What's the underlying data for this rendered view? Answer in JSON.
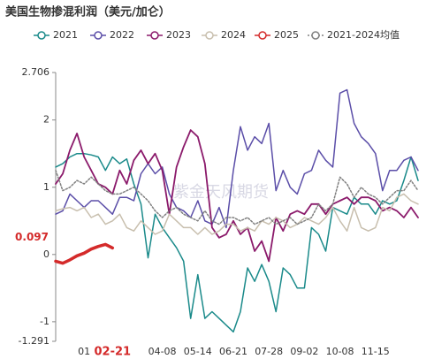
{
  "chart_data": {
    "type": "line",
    "title": "美国生物掺混利润（美元/加仑）",
    "watermark": "紫金天风期货",
    "categories": [
      null,
      null,
      null,
      null,
      "01",
      null,
      null,
      null,
      "02-21",
      null,
      null,
      null,
      null,
      null,
      null,
      "04-08",
      null,
      null,
      null,
      null,
      "05-14",
      null,
      null,
      null,
      null,
      "06-21",
      null,
      null,
      null,
      null,
      "07-28",
      null,
      null,
      null,
      null,
      "09-02",
      null,
      null,
      null,
      null,
      "10-08",
      null,
      null,
      null,
      null,
      "11-15",
      null,
      null,
      null,
      null,
      null,
      null
    ],
    "x_highlight": {
      "index": 8,
      "color": "#d42a2a"
    },
    "ylim": [
      -1.291,
      2.706
    ],
    "yticks": [
      -1.291,
      -1,
      0,
      1,
      2,
      2.706
    ],
    "series": [
      {
        "name": "2021",
        "color": "#1a8a8a",
        "width": 1.5,
        "dash": false,
        "values": [
          1.3,
          1.35,
          1.45,
          1.5,
          1.5,
          1.48,
          1.45,
          1.25,
          1.45,
          1.35,
          1.42,
          1.05,
          0.75,
          -0.05,
          0.6,
          0.4,
          0.25,
          0.1,
          -0.1,
          -0.95,
          -0.3,
          -0.95,
          -0.85,
          -0.95,
          -1.05,
          -1.15,
          -0.85,
          -0.2,
          -0.4,
          -0.15,
          -0.4,
          -0.85,
          -0.2,
          -0.3,
          -0.5,
          -0.5,
          0.4,
          0.3,
          0.05,
          0.7,
          0.65,
          0.6,
          0.85,
          0.75,
          0.75,
          0.6,
          0.8,
          0.75,
          0.8,
          1.1,
          1.45,
          1.1
        ]
      },
      {
        "name": "2022",
        "color": "#5b4ea8",
        "width": 1.5,
        "dash": false,
        "values": [
          0.6,
          0.65,
          0.9,
          0.8,
          0.7,
          0.8,
          0.8,
          0.7,
          0.6,
          0.85,
          0.85,
          0.8,
          1.2,
          1.35,
          1.2,
          1.3,
          0.9,
          0.7,
          0.65,
          0.55,
          0.8,
          0.5,
          0.45,
          0.7,
          0.4,
          1.25,
          1.9,
          1.55,
          1.75,
          1.65,
          1.95,
          0.95,
          1.25,
          1.0,
          0.9,
          1.2,
          1.25,
          1.55,
          1.4,
          1.3,
          2.4,
          2.45,
          1.95,
          1.75,
          1.65,
          1.5,
          0.95,
          1.25,
          1.25,
          1.4,
          1.45,
          1.25
        ]
      },
      {
        "name": "2023",
        "color": "#8b1a6b",
        "width": 1.8,
        "dash": false,
        "values": [
          1.05,
          1.2,
          1.55,
          1.8,
          1.45,
          1.25,
          1.05,
          1.0,
          0.9,
          1.25,
          1.05,
          1.4,
          1.55,
          1.35,
          1.5,
          1.25,
          0.6,
          1.3,
          1.6,
          1.85,
          1.75,
          1.35,
          0.4,
          0.25,
          0.3,
          0.5,
          0.3,
          0.4,
          0.05,
          0.2,
          -0.1,
          0.55,
          0.35,
          0.6,
          0.65,
          0.6,
          0.75,
          0.75,
          0.6,
          0.75,
          0.8,
          0.85,
          0.75,
          0.85,
          0.85,
          0.8,
          0.65,
          0.7,
          0.65,
          0.55,
          0.7,
          0.55
        ]
      },
      {
        "name": "2024",
        "color": "#c8bfae",
        "width": 1.5,
        "dash": false,
        "values": [
          0.65,
          0.68,
          0.7,
          0.65,
          0.7,
          0.55,
          0.6,
          0.45,
          0.5,
          0.6,
          0.4,
          0.35,
          0.5,
          0.4,
          0.3,
          0.35,
          0.6,
          0.5,
          0.4,
          0.4,
          0.3,
          0.4,
          0.3,
          0.35,
          0.45,
          0.45,
          0.35,
          0.4,
          0.35,
          0.5,
          0.45,
          0.55,
          0.5,
          0.4,
          0.45,
          0.55,
          0.5,
          0.45,
          0.55,
          0.7,
          0.5,
          0.35,
          0.7,
          0.4,
          0.35,
          0.4,
          0.7,
          0.65,
          0.85,
          0.9,
          0.8,
          0.75
        ]
      },
      {
        "name": "2025",
        "color": "#d42a2a",
        "width": 3.5,
        "dash": false,
        "values": [
          -0.1,
          -0.13,
          -0.08,
          -0.02,
          0.02,
          0.08,
          0.12,
          0.15,
          0.097,
          null,
          null,
          null,
          null,
          null,
          null,
          null,
          null,
          null,
          null,
          null,
          null,
          null,
          null,
          null,
          null,
          null,
          null,
          null,
          null,
          null,
          null,
          null,
          null,
          null,
          null,
          null,
          null,
          null,
          null,
          null,
          null,
          null,
          null,
          null,
          null,
          null,
          null,
          null,
          null,
          null,
          null,
          null
        ],
        "value_labels": [
          null,
          null,
          null,
          null,
          null,
          null,
          null,
          null,
          "0.097",
          null,
          null,
          null,
          null,
          null,
          null,
          null,
          null,
          null,
          null,
          null,
          null,
          null,
          null,
          null,
          null,
          null,
          null,
          null,
          null,
          null,
          null,
          null,
          null,
          null,
          null,
          null,
          null,
          null,
          null,
          null,
          null,
          null,
          null,
          null,
          null,
          null,
          null,
          null,
          null,
          null,
          null,
          null
        ]
      },
      {
        "name": "2021-2024均值",
        "color": "#808080",
        "width": 1.5,
        "dash": true,
        "values": [
          1.25,
          0.95,
          1.0,
          1.1,
          1.05,
          1.15,
          1.05,
          0.95,
          0.9,
          0.9,
          0.95,
          1.0,
          0.9,
          0.8,
          0.65,
          0.55,
          0.65,
          0.7,
          0.6,
          0.55,
          0.5,
          0.65,
          0.5,
          0.45,
          0.55,
          0.55,
          0.5,
          0.55,
          0.45,
          0.5,
          0.55,
          0.45,
          0.5,
          0.55,
          0.45,
          0.5,
          0.55,
          0.75,
          0.65,
          0.75,
          1.15,
          1.05,
          0.85,
          1.0,
          0.9,
          0.85,
          0.75,
          0.85,
          0.95,
          0.95,
          1.1,
          0.95
        ]
      }
    ]
  }
}
